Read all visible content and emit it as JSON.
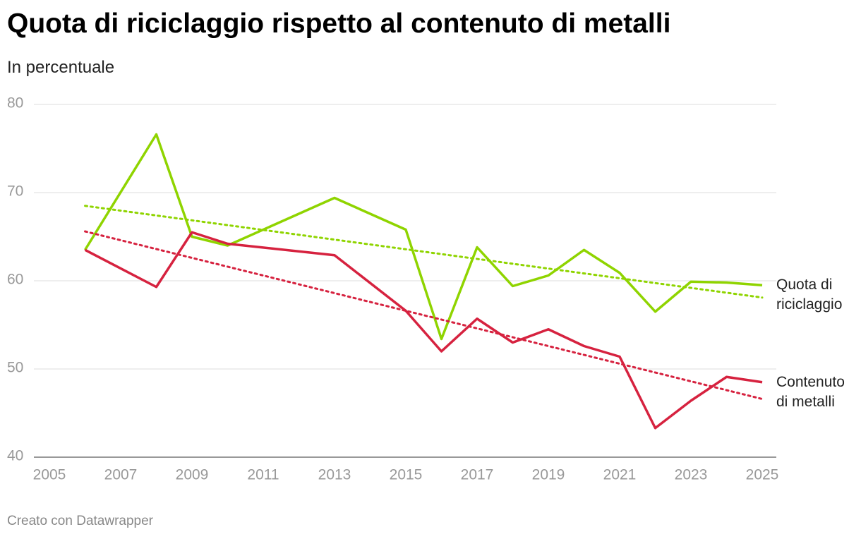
{
  "chart_data": {
    "type": "line",
    "title": "Quota di riciclaggio rispetto al contenuto di metalli",
    "subtitle": "In percentuale",
    "footer": "Creato con Datawrapper",
    "x": [
      2006,
      2008,
      2009,
      2010,
      2013,
      2015,
      2016,
      2017,
      2018,
      2019,
      2020,
      2021,
      2022,
      2023,
      2024,
      2025
    ],
    "series": [
      {
        "name": "Quota di riciclaggio",
        "color": "#8fd400",
        "values": [
          63.5,
          76.6,
          65.0,
          64.0,
          69.4,
          65.8,
          53.4,
          63.8,
          59.4,
          60.6,
          63.5,
          60.9,
          56.5,
          59.9,
          59.8,
          59.5
        ],
        "trend": [
          68.5,
          58.1
        ]
      },
      {
        "name": "Contenuto di metalli",
        "color": "#d6223f",
        "values": [
          63.5,
          59.3,
          65.5,
          64.2,
          62.9,
          56.6,
          52.0,
          55.7,
          53.0,
          54.5,
          52.6,
          51.4,
          43.3,
          46.4,
          49.1,
          48.5
        ],
        "trend": [
          65.6,
          46.6
        ]
      }
    ],
    "trend_x": [
      2006,
      2025
    ],
    "xlim": [
      2005,
      2025
    ],
    "xticks": [
      2005,
      2007,
      2009,
      2011,
      2013,
      2015,
      2017,
      2019,
      2021,
      2023,
      2025
    ],
    "ylim": [
      40,
      80
    ],
    "yticks": [
      40,
      50,
      60,
      70,
      80
    ],
    "grid": true
  }
}
